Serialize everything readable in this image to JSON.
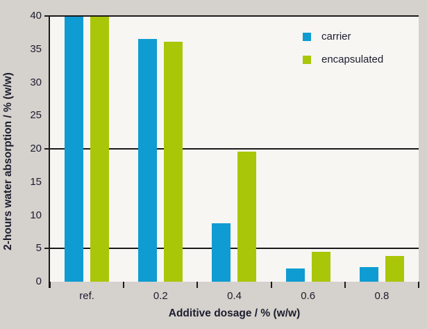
{
  "chart_data": {
    "type": "bar",
    "title": "",
    "xlabel": "Additive dosage / % (w/w)",
    "ylabel": "2-hours water absorption / % (w/w)",
    "categories": [
      "ref.",
      "0.2",
      "0.4",
      "0.6",
      "0.8"
    ],
    "series": [
      {
        "name": "carrier",
        "color": "#0f9cd2",
        "values": [
          40,
          36.5,
          8.8,
          2.0,
          2.2
        ]
      },
      {
        "name": "encapsulated",
        "color": "#aac608",
        "values": [
          40,
          36.1,
          19.6,
          4.5,
          3.9
        ]
      }
    ],
    "ylim": [
      0,
      40
    ],
    "y_ticks": [
      0,
      5,
      10,
      15,
      20,
      25,
      30,
      35,
      40
    ],
    "gridline_values": [
      5,
      20,
      40
    ],
    "legend_position": "top-right-inside",
    "legend_entries": [
      "carrier",
      "encapsulated"
    ]
  },
  "colors": {
    "background": "#d5d1cc",
    "plot_background": "#f7f6f3",
    "axis": "#1a1a1a",
    "text": "#1c1c2e",
    "carrier": "#0f9cd2",
    "encapsulated": "#aac608"
  }
}
